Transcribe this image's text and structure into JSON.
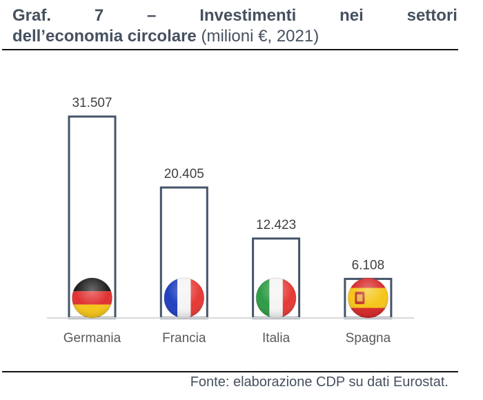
{
  "title": {
    "words_line1": [
      "Graf.",
      "7",
      "–",
      "Investimenti",
      "nei",
      "settori"
    ],
    "line2_bold": "dell’economia circolare",
    "line2_sub": "(milioni €, 2021)"
  },
  "source": "Fonte: elaborazione CDP su dati Eurostat.",
  "colors": {
    "bar_outline": "#44546a",
    "axis": "#d9d9d9",
    "text": "#46505f"
  },
  "chart_data": {
    "type": "bar",
    "title": "Graf. 7 – Investimenti nei settori dell’economia circolare (milioni €, 2021)",
    "xlabel": "",
    "ylabel": "milioni €",
    "ylim": [
      0,
      31507
    ],
    "grid": false,
    "categories": [
      "Germania",
      "Francia",
      "Italia",
      "Spagna"
    ],
    "values": [
      31507,
      20405,
      12423,
      6108
    ],
    "data_labels": [
      "31.507",
      "20.405",
      "12.423",
      "6.108"
    ],
    "flags": [
      "germany-flag-icon",
      "france-flag-icon",
      "italy-flag-icon",
      "spain-flag-icon"
    ]
  }
}
